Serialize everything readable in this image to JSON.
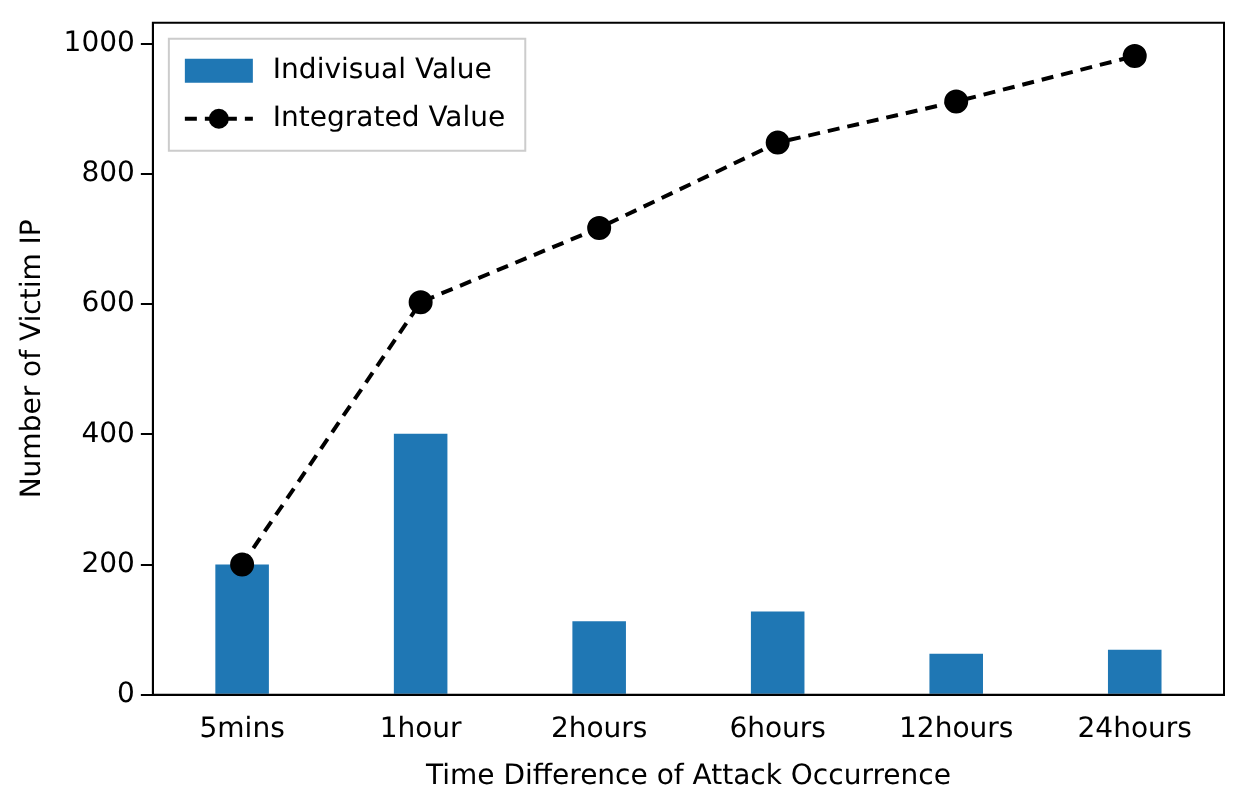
{
  "chart_data": {
    "type": "bar",
    "xlabel": "Time Difference of Attack Occurrence",
    "ylabel": "Number of Victim IP",
    "categories": [
      "5mins",
      "1hour",
      "2hours",
      "6hours",
      "12hours",
      "24hours"
    ],
    "series": [
      {
        "name": "Indivisual Value",
        "color": "#1f77b4",
        "values": [
          200,
          401,
          113,
          128,
          63,
          69
        ]
      },
      {
        "name": "Integrated Value",
        "type": "line",
        "color": "#000000",
        "marker": "circle",
        "line_style": "dashed",
        "values": [
          200,
          603,
          717,
          848,
          911,
          981
        ]
      }
    ],
    "ylim": [
      0,
      1032
    ],
    "yticks": [
      0,
      200,
      400,
      600,
      800,
      1000
    ],
    "grid": false,
    "legend": "top left"
  }
}
